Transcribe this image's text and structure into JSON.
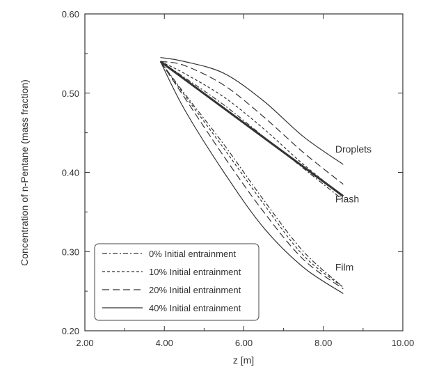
{
  "chart_data": {
    "type": "line",
    "xlabel": "z [m]",
    "ylabel": "Concentration of n-Pentane (mass fraction)",
    "xlim": [
      2.0,
      10.0
    ],
    "ylim": [
      0.2,
      0.6
    ],
    "x_ticks": [
      "2.00",
      "4.00",
      "6.00",
      "8.00",
      "10.00"
    ],
    "y_ticks": [
      "0.20",
      "0.30",
      "0.40",
      "0.50",
      "0.60"
    ],
    "legend_position": "bottom-left",
    "legend": [
      {
        "label": "0% Initial entrainment",
        "dash": "dashdot"
      },
      {
        "label": "10% Initial entrainment",
        "dash": "dotted"
      },
      {
        "label": "20% Initial entrainment",
        "dash": "dashed"
      },
      {
        "label": "40% Initial entrainment",
        "dash": "solid"
      }
    ],
    "annotations": [
      {
        "text": "Droplets",
        "x": 8.3,
        "y": 0.425
      },
      {
        "text": "Flash",
        "x": 8.3,
        "y": 0.362
      },
      {
        "text": "Film",
        "x": 8.3,
        "y": 0.276
      }
    ],
    "series": [
      {
        "group": "flash",
        "dash": "solid-bold",
        "x": [
          3.9,
          8.5
        ],
        "y": [
          0.54,
          0.37
        ]
      },
      {
        "group": "droplets",
        "dash": "dashdot",
        "x": [
          3.9,
          4.5,
          5.5,
          6.5,
          7.5,
          8.5
        ],
        "y": [
          0.54,
          0.52,
          0.485,
          0.445,
          0.405,
          0.365
        ]
      },
      {
        "group": "droplets",
        "dash": "dotted",
        "x": [
          3.9,
          4.5,
          5.5,
          6.5,
          7.5,
          8.5
        ],
        "y": [
          0.54,
          0.525,
          0.495,
          0.455,
          0.41,
          0.37
        ]
      },
      {
        "group": "droplets",
        "dash": "dashed",
        "x": [
          3.9,
          4.5,
          5.5,
          6.5,
          7.5,
          8.5
        ],
        "y": [
          0.54,
          0.535,
          0.51,
          0.47,
          0.425,
          0.385
        ]
      },
      {
        "group": "droplets",
        "dash": "solid",
        "x": [
          3.9,
          4.5,
          5.5,
          6.5,
          7.5,
          8.5
        ],
        "y": [
          0.545,
          0.54,
          0.525,
          0.49,
          0.445,
          0.41
        ]
      },
      {
        "group": "film",
        "dash": "dashdot",
        "x": [
          3.9,
          4.5,
          5.5,
          6.5,
          7.5,
          8.5
        ],
        "y": [
          0.54,
          0.5,
          0.435,
          0.365,
          0.3,
          0.255
        ]
      },
      {
        "group": "film",
        "dash": "dotted",
        "x": [
          3.9,
          4.5,
          5.5,
          6.5,
          7.5,
          8.5
        ],
        "y": [
          0.54,
          0.498,
          0.43,
          0.36,
          0.295,
          0.255
        ]
      },
      {
        "group": "film",
        "dash": "dashed",
        "x": [
          3.9,
          4.5,
          5.5,
          6.5,
          7.5,
          8.5
        ],
        "y": [
          0.54,
          0.495,
          0.42,
          0.35,
          0.29,
          0.253
        ]
      },
      {
        "group": "film",
        "dash": "solid",
        "x": [
          3.9,
          4.5,
          5.5,
          6.5,
          7.5,
          8.5
        ],
        "y": [
          0.54,
          0.48,
          0.4,
          0.33,
          0.28,
          0.247
        ]
      }
    ]
  }
}
